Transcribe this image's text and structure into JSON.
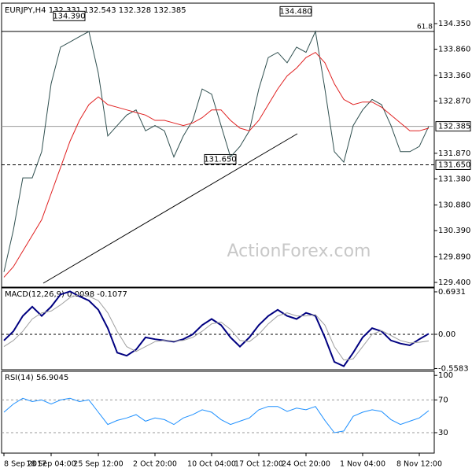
{
  "chart_data": [
    {
      "type": "line",
      "title": "EURJPY,H4  132.331 132.543 132.328 132.385",
      "categories": [
        "8 Sep 2017",
        null,
        null,
        null,
        null,
        "18 Sep 04:00",
        null,
        null,
        null,
        null,
        "25 Sep 12:00",
        null,
        null,
        null,
        null,
        null,
        "2 Oct 20:00",
        null,
        null,
        null,
        null,
        null,
        "10 Oct 04:00",
        null,
        null,
        null,
        null,
        "17 Oct 12:00",
        null,
        null,
        null,
        null,
        "24 Oct 20:00",
        null,
        null,
        null,
        null,
        null,
        "1 Nov 04:00",
        null,
        null,
        null,
        null,
        null,
        "8 Nov 12:00",
        null
      ],
      "series": [
        {
          "name": "EURJPY",
          "color": "#2f4f4f",
          "values": [
            129.6,
            130.4,
            131.4,
            131.4,
            131.9,
            133.2,
            133.9,
            134.0,
            134.1,
            134.2,
            133.4,
            132.2,
            132.4,
            132.6,
            132.7,
            132.3,
            132.4,
            132.3,
            131.8,
            132.2,
            132.5,
            133.1,
            133.0,
            132.4,
            131.8,
            132.0,
            132.3,
            133.1,
            133.7,
            133.8,
            133.6,
            133.9,
            133.8,
            134.2,
            133.1,
            131.9,
            131.7,
            132.4,
            132.7,
            132.9,
            132.8,
            132.4,
            131.9,
            131.9,
            132.0,
            132.385
          ]
        },
        {
          "name": "MA",
          "color": "#e02020",
          "values": [
            129.5,
            129.7,
            130.0,
            130.3,
            130.6,
            131.1,
            131.6,
            132.1,
            132.5,
            132.8,
            132.95,
            132.8,
            132.75,
            132.7,
            132.65,
            132.6,
            132.5,
            132.5,
            132.45,
            132.4,
            132.45,
            132.55,
            132.7,
            132.7,
            132.5,
            132.35,
            132.3,
            132.5,
            132.8,
            133.1,
            133.35,
            133.5,
            133.7,
            133.8,
            133.6,
            133.2,
            132.9,
            132.8,
            132.85,
            132.85,
            132.75,
            132.6,
            132.45,
            132.3,
            132.3,
            132.35
          ]
        }
      ],
      "ylim": [
        129.31,
        134.726
      ],
      "yticks": [
        {
          "value": 134.35,
          "label": "134.350"
        },
        {
          "value": 133.86,
          "label": "133.860"
        },
        {
          "value": 133.36,
          "label": "133.360"
        },
        {
          "value": 132.87,
          "label": "132.870"
        },
        {
          "value": 131.87,
          "label": "131.870"
        },
        {
          "value": 131.38,
          "label": "131.380"
        },
        {
          "value": 130.88,
          "label": "130.880"
        },
        {
          "value": 130.39,
          "label": "130.390"
        },
        {
          "value": 129.89,
          "label": "129.890"
        },
        {
          "value": 129.4,
          "label": "129.400"
        }
      ],
      "annotations": [
        {
          "text": "134.390",
          "value": 134.39,
          "x": 9
        },
        {
          "text": "134.480",
          "value": 134.48,
          "x": 33
        },
        {
          "text": "131.650",
          "value": 131.65,
          "x": 25
        }
      ],
      "levels": [
        {
          "value": 134.2,
          "label": "61.8"
        },
        {
          "value": 131.65,
          "label": "131.650"
        }
      ],
      "watermark": "ActionForex.com"
    },
    {
      "type": "line",
      "title": "MACD(12,26,9) 0.0098 -0.1077",
      "series": [
        {
          "name": "MACD",
          "color": "#000080",
          "values": [
            -0.1,
            0.05,
            0.3,
            0.45,
            0.3,
            0.45,
            0.65,
            0.7,
            0.62,
            0.55,
            0.4,
            0.1,
            -0.3,
            -0.35,
            -0.25,
            -0.05,
            -0.08,
            -0.1,
            -0.12,
            -0.08,
            0.0,
            0.15,
            0.25,
            0.15,
            -0.05,
            -0.2,
            -0.05,
            0.15,
            0.3,
            0.4,
            0.3,
            0.25,
            0.35,
            0.3,
            -0.05,
            -0.45,
            -0.52,
            -0.3,
            -0.05,
            0.1,
            0.05,
            -0.1,
            -0.15,
            -0.18,
            -0.08,
            0.0098
          ]
        },
        {
          "name": "Signal",
          "color": "#a0a0a0",
          "values": [
            -0.2,
            -0.1,
            0.05,
            0.25,
            0.35,
            0.38,
            0.48,
            0.6,
            0.65,
            0.62,
            0.55,
            0.35,
            0.05,
            -0.2,
            -0.28,
            -0.2,
            -0.12,
            -0.1,
            -0.11,
            -0.1,
            -0.05,
            0.05,
            0.17,
            0.2,
            0.08,
            -0.1,
            -0.12,
            0.0,
            0.17,
            0.3,
            0.35,
            0.3,
            0.3,
            0.32,
            0.15,
            -0.2,
            -0.42,
            -0.4,
            -0.2,
            0.0,
            0.06,
            -0.02,
            -0.1,
            -0.14,
            -0.13,
            -0.1077
          ]
        }
      ],
      "ylim": [
        -0.578,
        0.757
      ],
      "yticks": [
        0.6931,
        {
          "value": 0,
          "label": "0.00"
        },
        -0.5583
      ]
    },
    {
      "type": "line",
      "title": "RSI(14) 56.9045",
      "series": [
        {
          "name": "RSI",
          "color": "#1e90ff",
          "values": [
            55,
            65,
            72,
            68,
            70,
            65,
            70,
            72,
            68,
            70,
            55,
            40,
            45,
            48,
            52,
            44,
            48,
            46,
            40,
            48,
            52,
            58,
            55,
            46,
            40,
            44,
            48,
            58,
            62,
            62,
            56,
            60,
            58,
            62,
            45,
            30,
            32,
            50,
            55,
            58,
            56,
            46,
            40,
            44,
            48,
            56.9045
          ]
        }
      ],
      "ylim": [
        5,
        105
      ],
      "yticks": [
        100,
        70,
        30
      ]
    }
  ]
}
